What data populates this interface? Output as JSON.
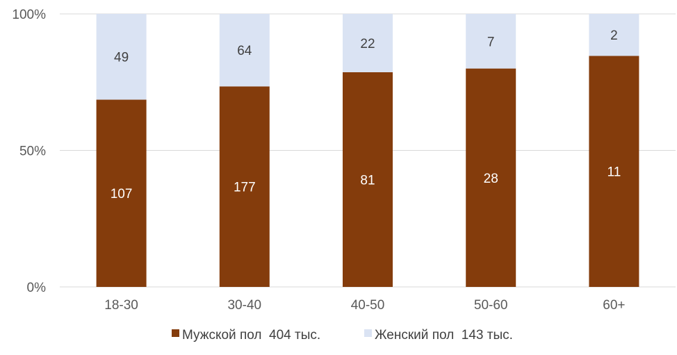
{
  "chart_data": {
    "type": "bar",
    "stacked": true,
    "normalized": true,
    "title": "",
    "xlabel": "",
    "ylabel": "",
    "categories": [
      "18-30",
      "30-40",
      "40-50",
      "50-60",
      "60+"
    ],
    "series": [
      {
        "name": "Мужской пол  404 тыс.",
        "values": [
          107,
          177,
          81,
          28,
          11
        ],
        "color": "#843C0C",
        "label_color": "#FFFFFF"
      },
      {
        "name": "Женский пол  143 тыс.",
        "values": [
          49,
          64,
          22,
          7,
          2
        ],
        "color": "#DAE3F3",
        "label_color": "#404040"
      }
    ],
    "yticks": [
      "0%",
      "50%",
      "100%"
    ],
    "ylim": [
      0,
      100
    ],
    "grid": true,
    "legend_position": "bottom"
  }
}
